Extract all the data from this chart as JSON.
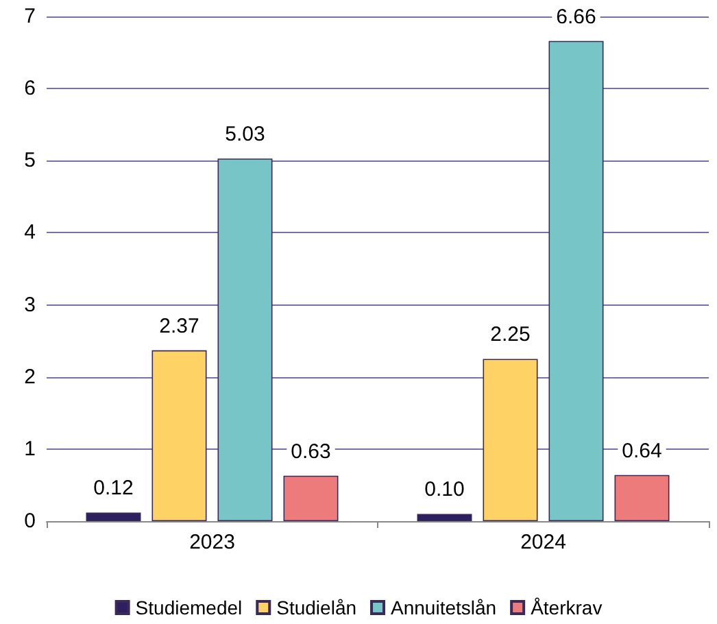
{
  "chart_data": {
    "type": "bar",
    "categories": [
      "2023",
      "2024"
    ],
    "series": [
      {
        "name": "Studiemedel",
        "color": "#2e1f5e",
        "values": [
          0.12,
          0.1
        ],
        "value_labels": [
          "0.12",
          "0.10"
        ]
      },
      {
        "name": "Studielån",
        "color": "#ffd266",
        "values": [
          2.37,
          2.25
        ],
        "value_labels": [
          "2.37",
          "2.25"
        ]
      },
      {
        "name": "Annuitetslån",
        "color": "#78c5c8",
        "values": [
          5.03,
          6.66
        ],
        "value_labels": [
          "5.03",
          "6.66"
        ]
      },
      {
        "name": "Återkrav",
        "color": "#ee7b7b",
        "values": [
          0.63,
          0.64
        ],
        "value_labels": [
          "0.63",
          "0.64"
        ]
      }
    ],
    "ylim": [
      0,
      7
    ],
    "yticks": [
      0,
      1,
      2,
      3,
      4,
      5,
      6,
      7
    ],
    "grid": "y",
    "legend": "bottom"
  }
}
